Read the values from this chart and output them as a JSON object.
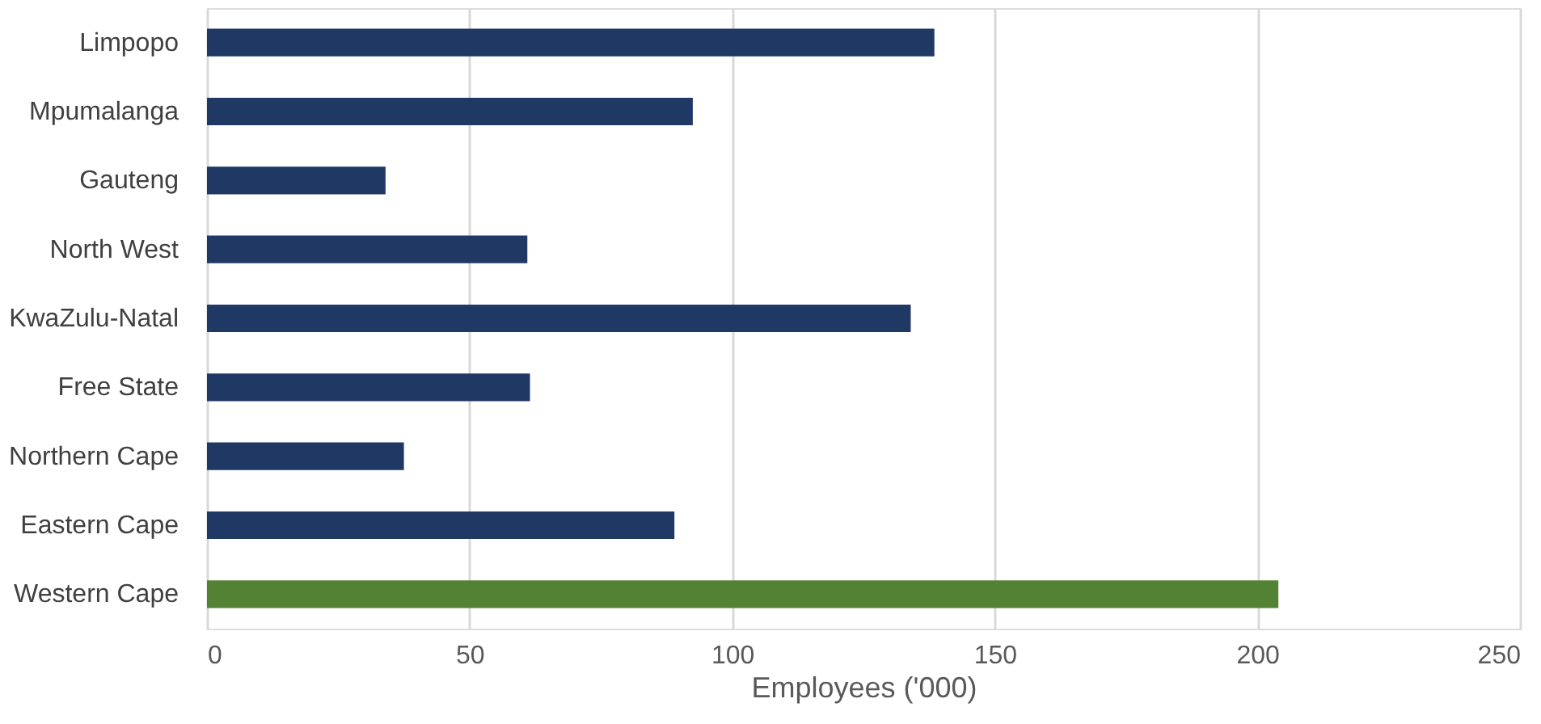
{
  "chart_data": {
    "type": "bar",
    "orientation": "horizontal",
    "xlabel": "Employees ('000)",
    "categories": [
      "Limpopo",
      "Mpumalanga",
      "Gauteng",
      "North West",
      "KwaZulu-Natal",
      "Free State",
      "Northern Cape",
      "Eastern Cape",
      "Western Cape"
    ],
    "values": [
      138.5,
      92.5,
      34,
      61,
      134,
      61.5,
      37.5,
      89,
      204
    ],
    "colors": [
      "#203864",
      "#203864",
      "#203864",
      "#203864",
      "#203864",
      "#203864",
      "#203864",
      "#203864",
      "#548235"
    ],
    "xlim": [
      0,
      250
    ],
    "xticks": [
      0,
      50,
      100,
      150,
      200,
      250
    ],
    "grid": "x"
  }
}
